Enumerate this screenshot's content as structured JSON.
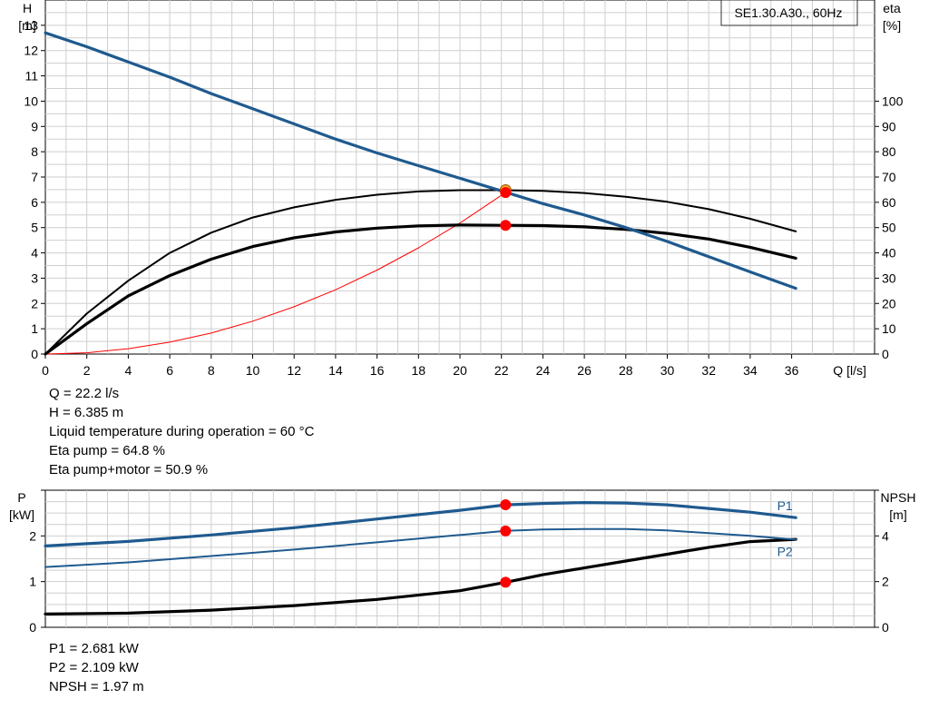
{
  "chart_data": [
    {
      "type": "line",
      "title": "SE1.30.A30., 60Hz",
      "xlabel": "Q [l/s]",
      "ylabel": "H\n[m]",
      "y2label": "eta\n[%]",
      "xlim": [
        0,
        40
      ],
      "ylim": [
        0,
        14
      ],
      "y2lim": [
        0,
        100
      ],
      "xticks": [
        0,
        2,
        4,
        6,
        8,
        10,
        12,
        14,
        16,
        18,
        20,
        22,
        24,
        26,
        28,
        30,
        32,
        34,
        36
      ],
      "yticks": [
        0,
        1,
        2,
        3,
        4,
        5,
        6,
        7,
        8,
        9,
        10,
        11,
        12,
        13
      ],
      "y2ticks": [
        0,
        10,
        20,
        30,
        40,
        50,
        60,
        70,
        80,
        90,
        100
      ],
      "grid": true,
      "series": [
        {
          "axis": "H",
          "color": "#1f5a8f",
          "x": [
            0,
            2,
            4,
            6,
            8,
            10,
            12,
            14,
            16,
            18,
            20,
            22,
            24,
            26,
            28,
            30,
            32,
            34,
            36.2
          ],
          "values": [
            12.7,
            12.15,
            11.55,
            10.95,
            10.3,
            9.7,
            9.1,
            8.5,
            7.95,
            7.45,
            6.95,
            6.45,
            5.95,
            5.5,
            5.0,
            4.45,
            3.85,
            3.25,
            2.6
          ]
        },
        {
          "axis": "eta",
          "color": "#000000",
          "x": [
            0,
            2,
            4,
            6,
            8,
            10,
            12,
            14,
            16,
            18,
            20,
            22,
            24,
            26,
            28,
            30,
            32,
            34,
            36.2
          ],
          "values": [
            0,
            16,
            29,
            40,
            48,
            54,
            58,
            61,
            63,
            64.3,
            64.8,
            64.8,
            64.5,
            63.7,
            62.2,
            60.2,
            57.3,
            53.5,
            48.5
          ]
        },
        {
          "axis": "eta",
          "color": "#000000",
          "x": [
            0,
            2,
            4,
            6,
            8,
            10,
            12,
            14,
            16,
            18,
            20,
            22,
            24,
            26,
            28,
            30,
            32,
            34,
            36.2
          ],
          "values": [
            0,
            12,
            23,
            31,
            37.5,
            42.5,
            46,
            48.3,
            49.8,
            50.7,
            51,
            50.9,
            50.8,
            50.3,
            49.3,
            47.7,
            45.5,
            42.2,
            37.9
          ]
        },
        {
          "axis": "H",
          "color": "#ff0000",
          "x": [
            0,
            2,
            4,
            6,
            8,
            10,
            12,
            14,
            16,
            18,
            20,
            22.2
          ],
          "values": [
            0,
            0.05,
            0.21,
            0.47,
            0.83,
            1.3,
            1.87,
            2.54,
            3.32,
            4.2,
            5.18,
            6.385
          ]
        }
      ],
      "markers": [
        {
          "x": 22.2,
          "y": 6.385,
          "axis": "H",
          "color": "#ff0000"
        },
        {
          "x": 22.2,
          "y": 50.9,
          "axis": "eta",
          "color": "#ff0000"
        }
      ]
    },
    {
      "type": "line",
      "xlabel": "",
      "ylabel": "P\n[kW]",
      "y2label": "NPSH\n[m]",
      "xlim": [
        0,
        40
      ],
      "ylim": [
        0,
        3
      ],
      "y2lim": [
        0,
        6
      ],
      "yticks": [
        0,
        1,
        2
      ],
      "y2ticks": [
        0,
        2,
        4
      ],
      "grid": true,
      "series": [
        {
          "name": "P1",
          "axis": "P",
          "color": "#1f5a8f",
          "x": [
            0,
            4,
            8,
            12,
            16,
            20,
            22.2,
            24,
            26,
            28,
            30,
            32,
            34,
            36.2
          ],
          "values": [
            1.78,
            1.88,
            2.02,
            2.18,
            2.37,
            2.56,
            2.681,
            2.71,
            2.73,
            2.72,
            2.68,
            2.6,
            2.52,
            2.4
          ]
        },
        {
          "name": "P2",
          "axis": "P",
          "color": "#1f5a8f",
          "x": [
            0,
            4,
            8,
            12,
            16,
            20,
            22.2,
            24,
            26,
            28,
            30,
            32,
            34,
            36.2
          ],
          "values": [
            1.32,
            1.42,
            1.56,
            1.7,
            1.86,
            2.02,
            2.109,
            2.14,
            2.15,
            2.15,
            2.12,
            2.06,
            2.0,
            1.92
          ]
        },
        {
          "name": "NPSH",
          "axis": "NPSH",
          "color": "#000000",
          "x": [
            0,
            4,
            8,
            12,
            16,
            20,
            22.2,
            24,
            26,
            28,
            30,
            32,
            34,
            36.2
          ],
          "values": [
            0.58,
            0.62,
            0.75,
            0.95,
            1.22,
            1.6,
            1.97,
            2.3,
            2.6,
            2.9,
            3.2,
            3.5,
            3.75,
            3.85
          ]
        }
      ],
      "markers": [
        {
          "x": 22.2,
          "y": 2.681,
          "axis": "P",
          "color": "#ff0000"
        },
        {
          "x": 22.2,
          "y": 2.109,
          "axis": "P",
          "color": "#ff0000"
        },
        {
          "x": 22.2,
          "y": 1.97,
          "axis": "NPSH",
          "color": "#ff0000"
        }
      ]
    }
  ],
  "info_top": [
    "Q = 22.2 l/s",
    "H = 6.385 m",
    "Liquid temperature during operation = 60 °C",
    "Eta pump = 64.8 %",
    "Eta pump+motor = 50.9 %"
  ],
  "info_bottom": [
    "P1 = 2.681 kW",
    "P2 = 2.109 kW",
    "NPSH = 1.97 m"
  ]
}
